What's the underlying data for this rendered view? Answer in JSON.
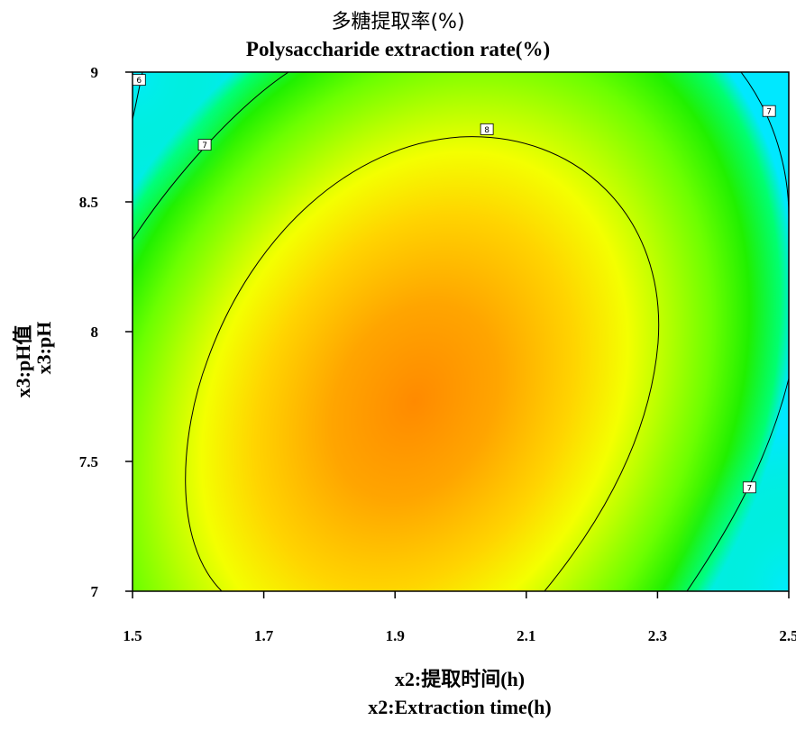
{
  "chart_data": {
    "type": "heatmap",
    "subtype": "contour",
    "title_cn": "多糖提取率(%)",
    "title_en": "Polysaccharide extraction rate(%)",
    "xlabel_cn": "x2:提取时间(h)",
    "xlabel_en": "x2:Extraction time(h)",
    "ylabel_cn": "x3:pH值",
    "ylabel_en": "x3:pH",
    "xlim": [
      1.5,
      2.5
    ],
    "ylim": [
      7,
      9
    ],
    "xticks": [
      "1.5",
      "1.7",
      "1.9",
      "2.1",
      "2.3",
      "2.5"
    ],
    "yticks": [
      "7",
      "7.5",
      "8",
      "8.5",
      "9"
    ],
    "optimum": {
      "x": 1.93,
      "y": 7.73
    },
    "contours": [
      {
        "level": "6",
        "label_at": {
          "x": 1.51,
          "y": 8.97
        }
      },
      {
        "level": "7",
        "label_at": {
          "x": 1.61,
          "y": 8.72
        }
      },
      {
        "level": "8",
        "label_at": {
          "x": 2.04,
          "y": 8.78
        }
      },
      {
        "level": "7",
        "label_at": {
          "x": 2.47,
          "y": 8.85
        }
      },
      {
        "level": "7",
        "label_at": {
          "x": 2.44,
          "y": 7.4
        }
      }
    ],
    "colormap": [
      "#00e0ff",
      "#00ff80",
      "#40ff00",
      "#b0ff00",
      "#ffff00",
      "#ffb000",
      "#ff8000"
    ]
  }
}
